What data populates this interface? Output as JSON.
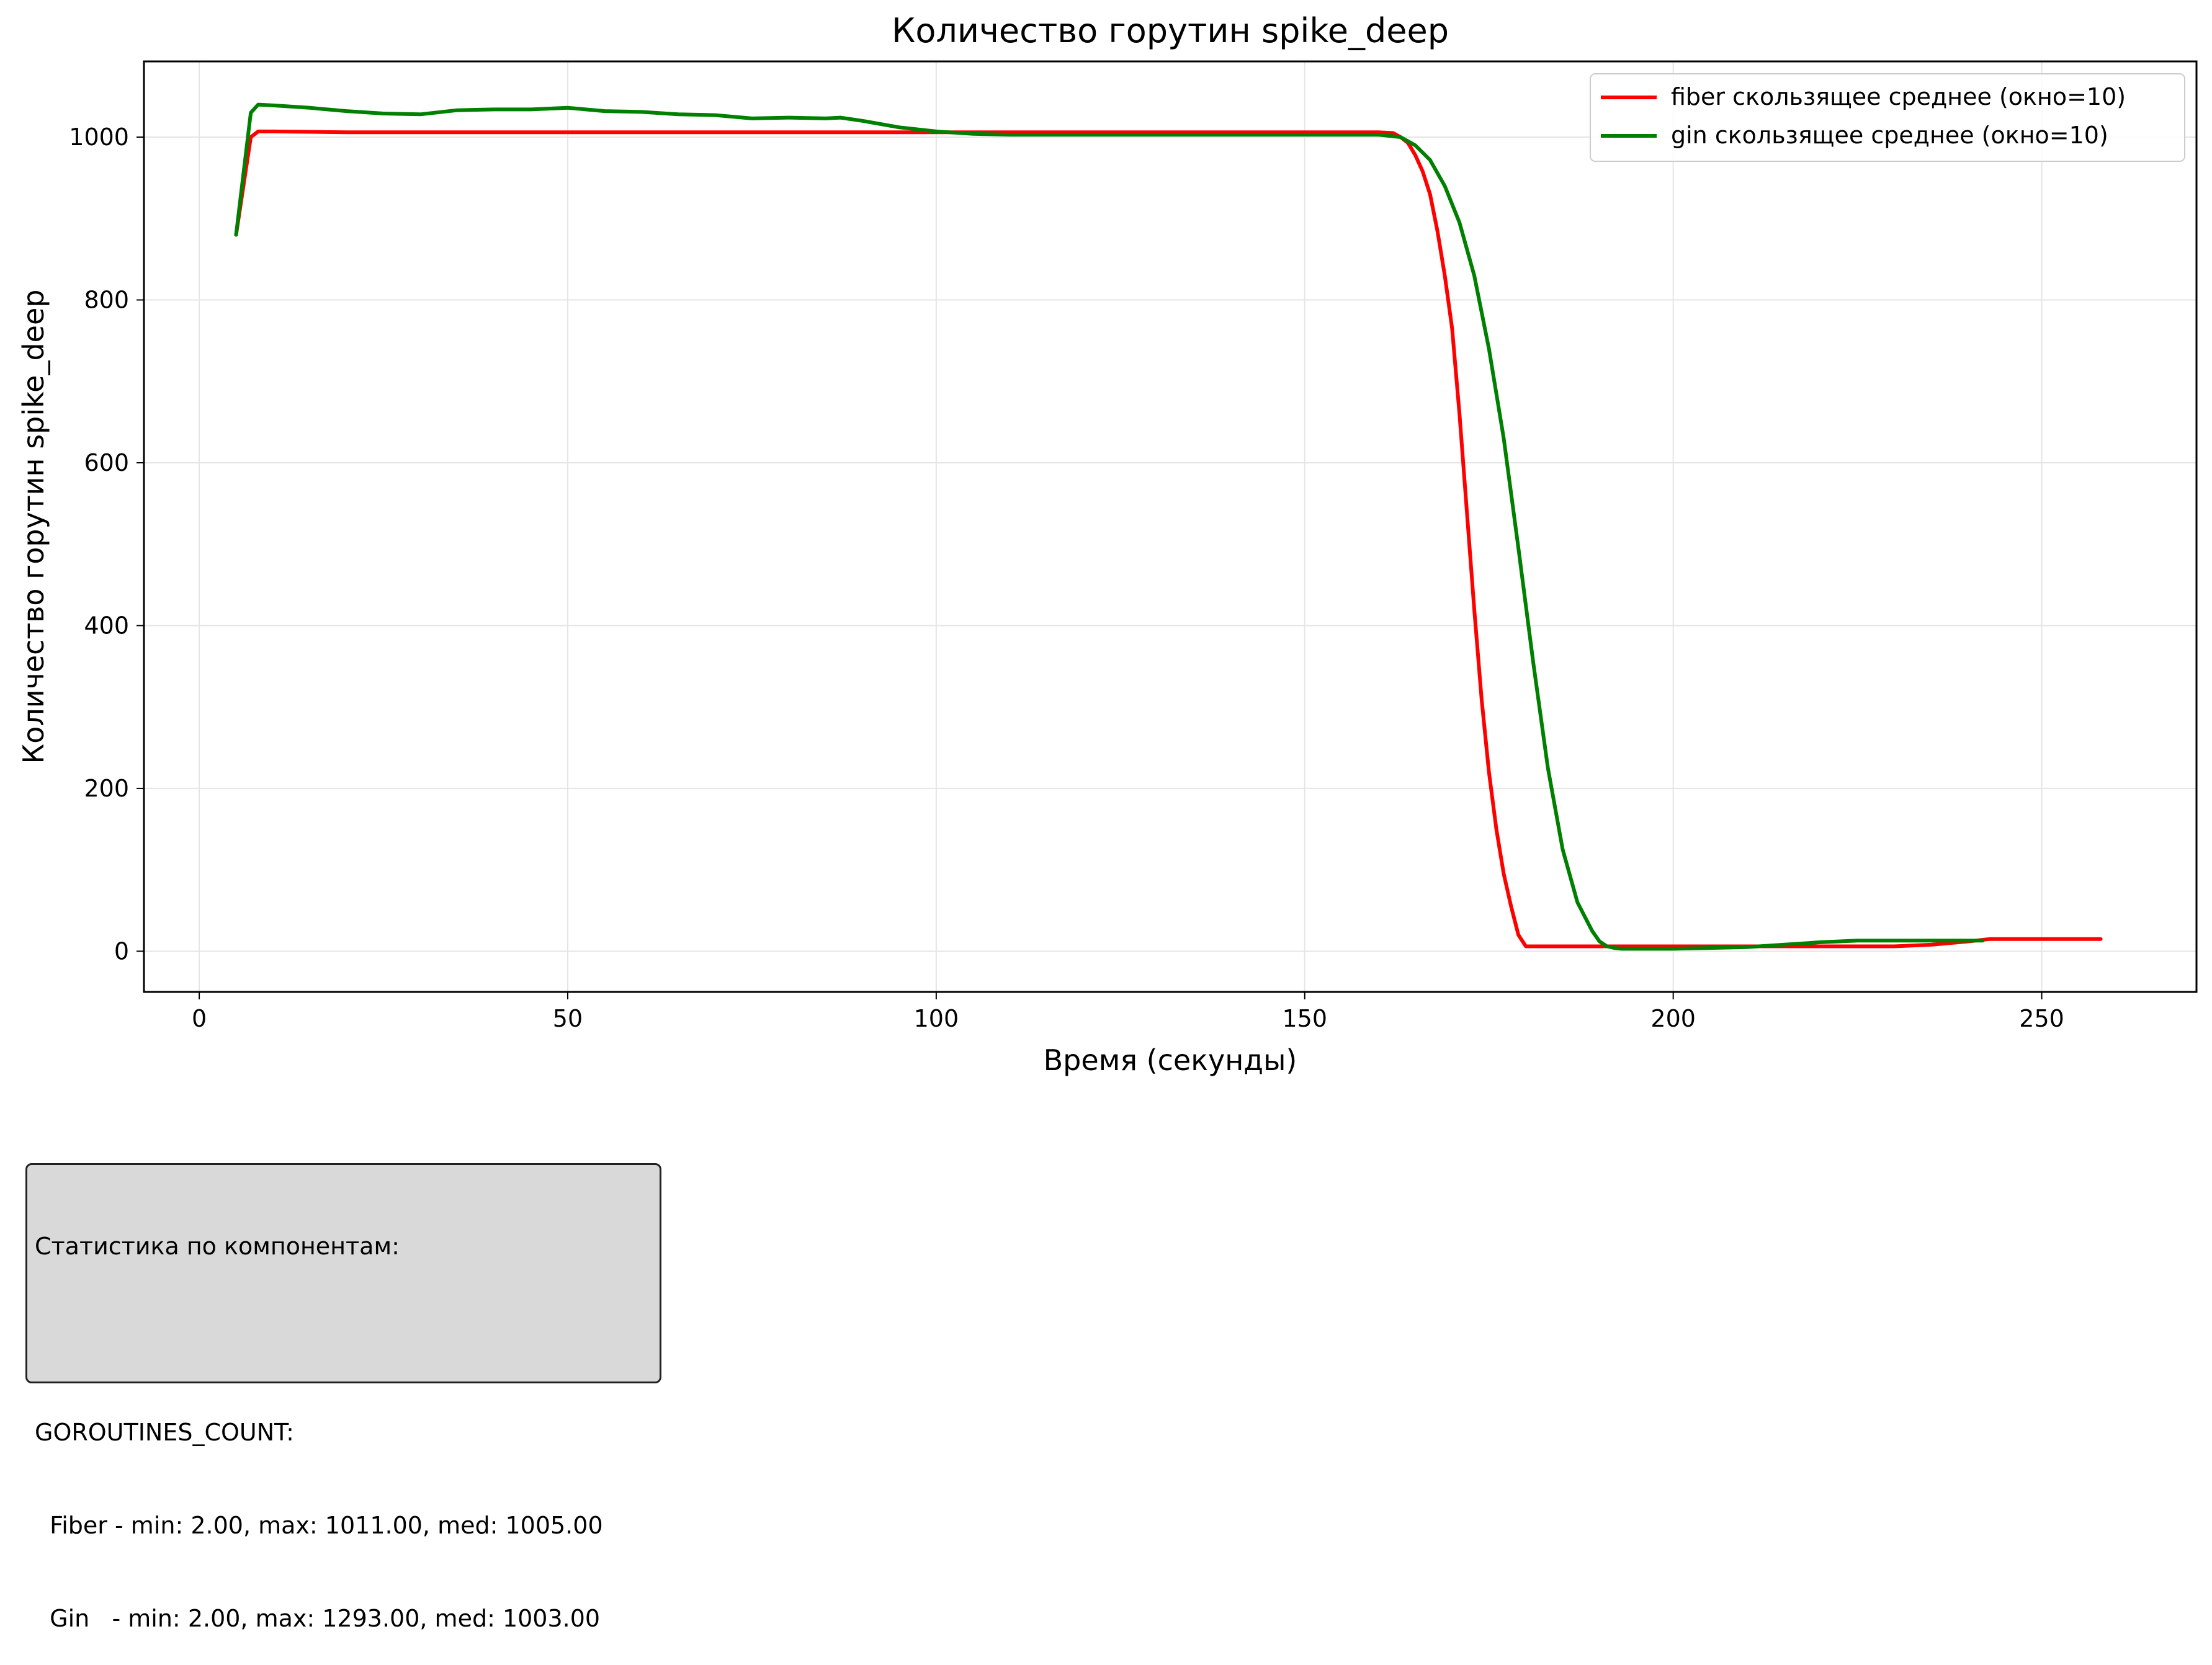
{
  "chart_data": {
    "type": "line",
    "title": "Количество горутин spike_deep",
    "xlabel": "Время (секунды)",
    "ylabel": "Количество горутин spike_deep",
    "xlim": [
      -7.5,
      271
    ],
    "ylim": [
      -50,
      1093
    ],
    "xticks": [
      0,
      50,
      100,
      150,
      200,
      250
    ],
    "yticks": [
      0,
      200,
      400,
      600,
      800,
      1000
    ],
    "grid": true,
    "legend_position": "top-right",
    "series": [
      {
        "name": "fiber скользящее среднее (окно=10)",
        "color": "#ff0000",
        "x": [
          5,
          7,
          8,
          10,
          20,
          50,
          100,
          150,
          160,
          162,
          163,
          164,
          165,
          166,
          167,
          168,
          169,
          170,
          171,
          172,
          173,
          174,
          175,
          176,
          177,
          178,
          179,
          180,
          181,
          185,
          200,
          220,
          230,
          235,
          240,
          243,
          250,
          258
        ],
        "y": [
          880,
          1000,
          1007,
          1007,
          1006,
          1006,
          1006,
          1006,
          1006,
          1005,
          1000,
          993,
          978,
          958,
          930,
          885,
          830,
          765,
          660,
          540,
          420,
          310,
          220,
          150,
          95,
          55,
          20,
          6,
          6,
          6,
          6,
          6,
          6,
          8,
          12,
          15,
          15,
          15
        ]
      },
      {
        "name": "gin скользящее среднее (окно=10)",
        "color": "#008000",
        "x": [
          5,
          7,
          8,
          10,
          15,
          20,
          25,
          30,
          35,
          40,
          45,
          50,
          55,
          60,
          65,
          70,
          75,
          80,
          85,
          87,
          90,
          95,
          100,
          105,
          110,
          150,
          160,
          163,
          165,
          167,
          169,
          171,
          173,
          175,
          177,
          179,
          181,
          183,
          185,
          187,
          189,
          190,
          191,
          192,
          193,
          195,
          200,
          210,
          220,
          225,
          230,
          242
        ],
        "y": [
          880,
          1030,
          1040,
          1039,
          1036,
          1032,
          1029,
          1028,
          1033,
          1034,
          1034,
          1036,
          1032,
          1031,
          1028,
          1027,
          1023,
          1024,
          1023,
          1024,
          1020,
          1012,
          1007,
          1004,
          1003,
          1003,
          1003,
          1000,
          990,
          972,
          940,
          895,
          830,
          740,
          630,
          495,
          355,
          225,
          125,
          60,
          25,
          12,
          6,
          4,
          3,
          3,
          3,
          5,
          11,
          13,
          13,
          13
        ]
      }
    ]
  },
  "stats_box": {
    "lines": [
      "Статистика по компонентам:",
      "",
      "GOROUTINES_COUNT:",
      "  Fiber - min: 2.00, max: 1011.00, med: 1005.00",
      "  Gin   - min: 2.00, max: 1293.00, med: 1003.00"
    ]
  }
}
